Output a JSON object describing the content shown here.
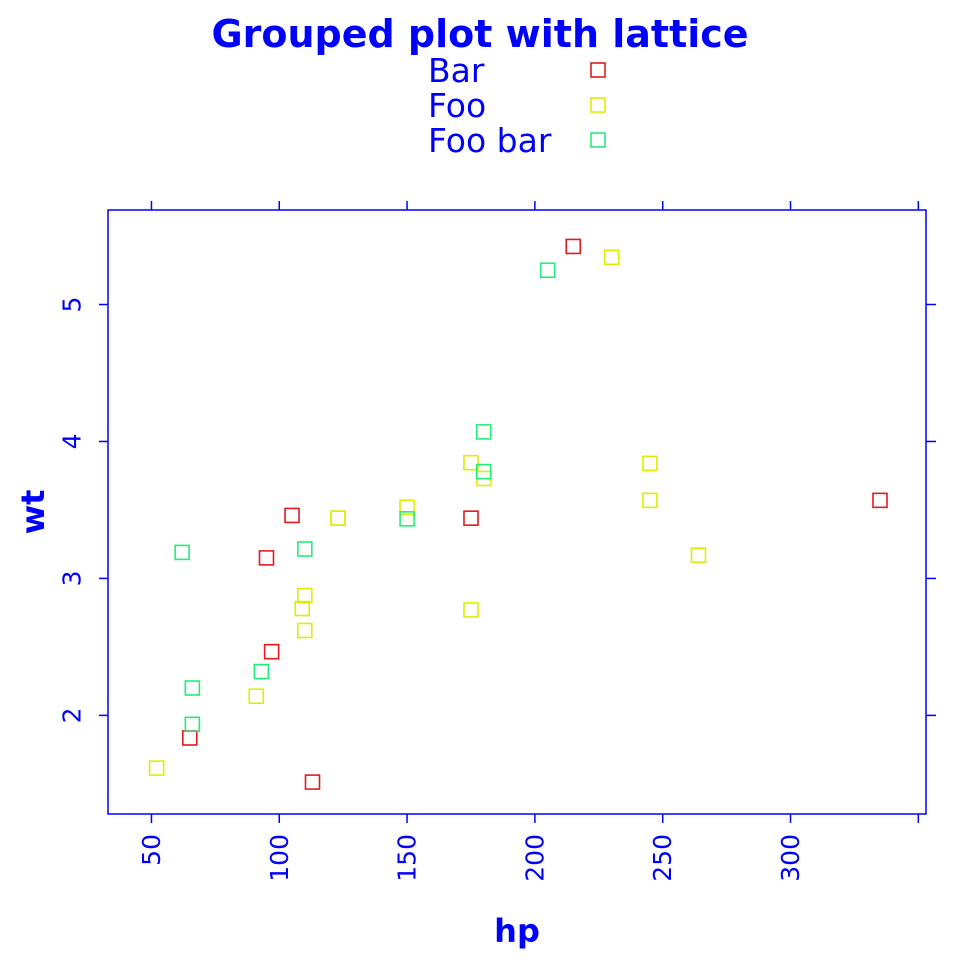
{
  "colors": {
    "text": "#0000ff",
    "axis": "#0000ff",
    "background": "#ffffff"
  },
  "chart_data": {
    "type": "scatter",
    "title": "Grouped plot with lattice",
    "xlabel": "hp",
    "ylabel": "wt",
    "xlim": [
      33,
      353
    ],
    "ylim": [
      1.28,
      5.69
    ],
    "x_ticks": [
      50,
      100,
      150,
      200,
      250,
      300,
      350
    ],
    "x_tick_labels": [
      "50",
      "100",
      "150",
      "200",
      "250",
      "300",
      ""
    ],
    "y_ticks": [
      2,
      3,
      4,
      5
    ],
    "y_tick_labels": [
      "2",
      "3",
      "4",
      "5"
    ],
    "marker": "open-square",
    "grid": false,
    "legend_position": "top",
    "series": [
      {
        "name": "Bar",
        "color": "#e41a1c",
        "points": [
          {
            "x": 65,
            "y": 1.835
          },
          {
            "x": 95,
            "y": 3.15
          },
          {
            "x": 97,
            "y": 2.465
          },
          {
            "x": 105,
            "y": 3.46
          },
          {
            "x": 113,
            "y": 1.513
          },
          {
            "x": 175,
            "y": 3.44
          },
          {
            "x": 215,
            "y": 5.424
          },
          {
            "x": 335,
            "y": 3.57
          }
        ]
      },
      {
        "name": "Foo",
        "color": "#ddee00",
        "points": [
          {
            "x": 52,
            "y": 1.615
          },
          {
            "x": 91,
            "y": 2.14
          },
          {
            "x": 109,
            "y": 2.78
          },
          {
            "x": 110,
            "y": 2.62
          },
          {
            "x": 110,
            "y": 2.875
          },
          {
            "x": 123,
            "y": 3.44
          },
          {
            "x": 123,
            "y": 3.44
          },
          {
            "x": 150,
            "y": 3.52
          },
          {
            "x": 175,
            "y": 3.845
          },
          {
            "x": 175,
            "y": 2.77
          },
          {
            "x": 180,
            "y": 3.73
          },
          {
            "x": 230,
            "y": 5.345
          },
          {
            "x": 245,
            "y": 3.84
          },
          {
            "x": 245,
            "y": 3.57
          },
          {
            "x": 264,
            "y": 3.17
          }
        ]
      },
      {
        "name": "Foo bar",
        "color": "#22ee77",
        "points": [
          {
            "x": 62,
            "y": 3.19
          },
          {
            "x": 66,
            "y": 2.2
          },
          {
            "x": 66,
            "y": 1.935
          },
          {
            "x": 93,
            "y": 2.32
          },
          {
            "x": 110,
            "y": 3.215
          },
          {
            "x": 150,
            "y": 3.435
          },
          {
            "x": 180,
            "y": 4.07
          },
          {
            "x": 180,
            "y": 3.78
          },
          {
            "x": 205,
            "y": 5.25
          }
        ]
      }
    ]
  }
}
